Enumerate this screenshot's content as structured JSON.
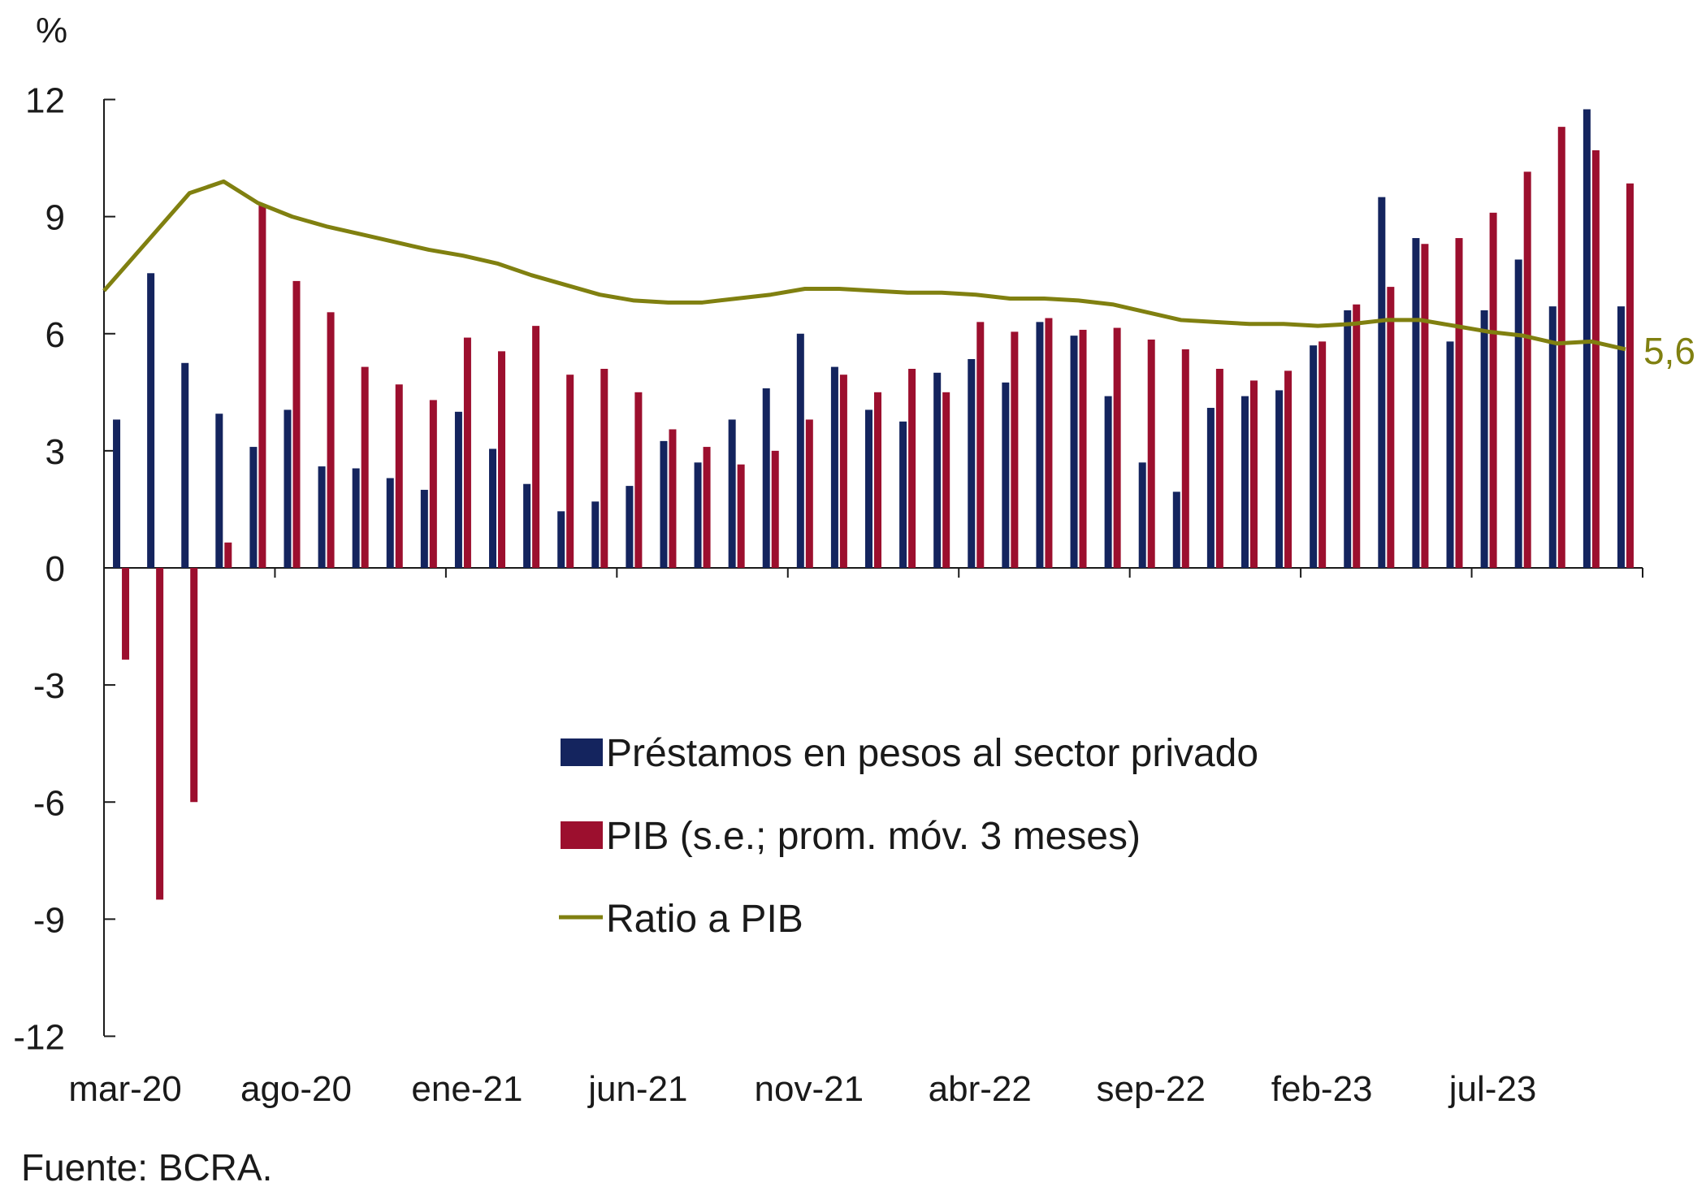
{
  "chart_data": {
    "type": "bar",
    "y_unit": "%",
    "ylim": [
      -12,
      12
    ],
    "yticks": [
      12,
      9,
      6,
      3,
      0,
      -3,
      -6,
      -9,
      -12
    ],
    "ytick_labels": [
      "12",
      "9",
      "6",
      "3",
      "0",
      "-3",
      "-6",
      "-9",
      "-12"
    ],
    "x": [
      "mar-20",
      "abr-20",
      "may-20",
      "jun-20",
      "jul-20",
      "ago-20",
      "sep-20",
      "oct-20",
      "nov-20",
      "dic-20",
      "ene-21",
      "feb-21",
      "mar-21",
      "abr-21",
      "may-21",
      "jun-21",
      "jul-21",
      "ago-21",
      "sep-21",
      "oct-21",
      "nov-21",
      "dic-21",
      "ene-22",
      "feb-22",
      "mar-22",
      "abr-22",
      "may-22",
      "jun-22",
      "jul-22",
      "ago-22",
      "sep-22",
      "oct-22",
      "nov-22",
      "dic-22",
      "ene-23",
      "feb-23",
      "mar-23",
      "abr-23",
      "may-23",
      "jun-23",
      "jul-23",
      "ago-23",
      "sep-23",
      "oct-23",
      "nov-23"
    ],
    "x_tick_labels": [
      {
        "index": 0,
        "label": "mar-20"
      },
      {
        "index": 5,
        "label": "ago-20"
      },
      {
        "index": 10,
        "label": "ene-21"
      },
      {
        "index": 15,
        "label": "jun-21"
      },
      {
        "index": 20,
        "label": "nov-21"
      },
      {
        "index": 25,
        "label": "abr-22"
      },
      {
        "index": 30,
        "label": "sep-22"
      },
      {
        "index": 35,
        "label": "feb-23"
      },
      {
        "index": 40,
        "label": "jul-23"
      }
    ],
    "series": [
      {
        "name": "Préstamos en pesos al sector privado",
        "type": "bar",
        "color": "#14245e",
        "values": [
          3.8,
          7.55,
          5.25,
          3.95,
          3.1,
          4.05,
          2.6,
          2.55,
          2.3,
          2.0,
          4.0,
          3.05,
          2.15,
          1.45,
          1.7,
          2.1,
          3.25,
          2.7,
          3.8,
          4.6,
          6.0,
          5.15,
          4.05,
          3.75,
          5.0,
          5.35,
          4.75,
          6.3,
          5.95,
          4.4,
          2.7,
          1.95,
          4.1,
          4.4,
          4.55,
          5.7,
          6.6,
          9.5,
          8.45,
          5.8,
          6.6,
          7.9,
          6.7,
          11.75,
          6.7
        ]
      },
      {
        "name": "PIB (s.e.; prom. móv. 3 meses)",
        "type": "bar",
        "color": "#9c0f2e",
        "values": [
          -2.35,
          -8.5,
          -6.0,
          0.65,
          9.3,
          7.35,
          6.55,
          5.15,
          4.7,
          4.3,
          5.9,
          5.55,
          6.2,
          4.95,
          5.1,
          4.5,
          3.55,
          3.1,
          2.65,
          3.0,
          3.8,
          4.95,
          4.5,
          5.1,
          4.5,
          6.3,
          6.05,
          6.4,
          6.1,
          6.15,
          5.85,
          5.6,
          5.1,
          4.8,
          5.05,
          5.8,
          6.75,
          7.2,
          8.3,
          8.45,
          9.1,
          10.15,
          11.3,
          10.7,
          9.85
        ]
      },
      {
        "name": "Ratio a PIB",
        "type": "line",
        "color": "#808010",
        "values": [
          7.1,
          8.6,
          9.6,
          9.9,
          9.35,
          9.0,
          8.75,
          8.55,
          8.35,
          8.15,
          8.0,
          7.8,
          7.5,
          7.25,
          7.0,
          6.85,
          6.8,
          6.8,
          6.9,
          7.0,
          7.15,
          7.15,
          7.1,
          7.05,
          7.05,
          7.0,
          6.9,
          6.9,
          6.85,
          6.75,
          6.55,
          6.35,
          6.3,
          6.25,
          6.25,
          6.2,
          6.25,
          6.35,
          6.35,
          6.2,
          6.05,
          5.95,
          5.75,
          5.8,
          5.6
        ],
        "end_label": "5,6"
      }
    ],
    "legend": {
      "placement": "center",
      "entries": [
        {
          "label": "Préstamos en pesos al sector privado",
          "marker": "bar",
          "color": "#14245e"
        },
        {
          "label": "PIB (s.e.; prom. móv. 3 meses)",
          "marker": "bar",
          "color": "#9c0f2e"
        },
        {
          "label": "Ratio a PIB",
          "marker": "line",
          "color": "#808010"
        }
      ]
    },
    "grid": false
  },
  "source": "Fuente: BCRA."
}
